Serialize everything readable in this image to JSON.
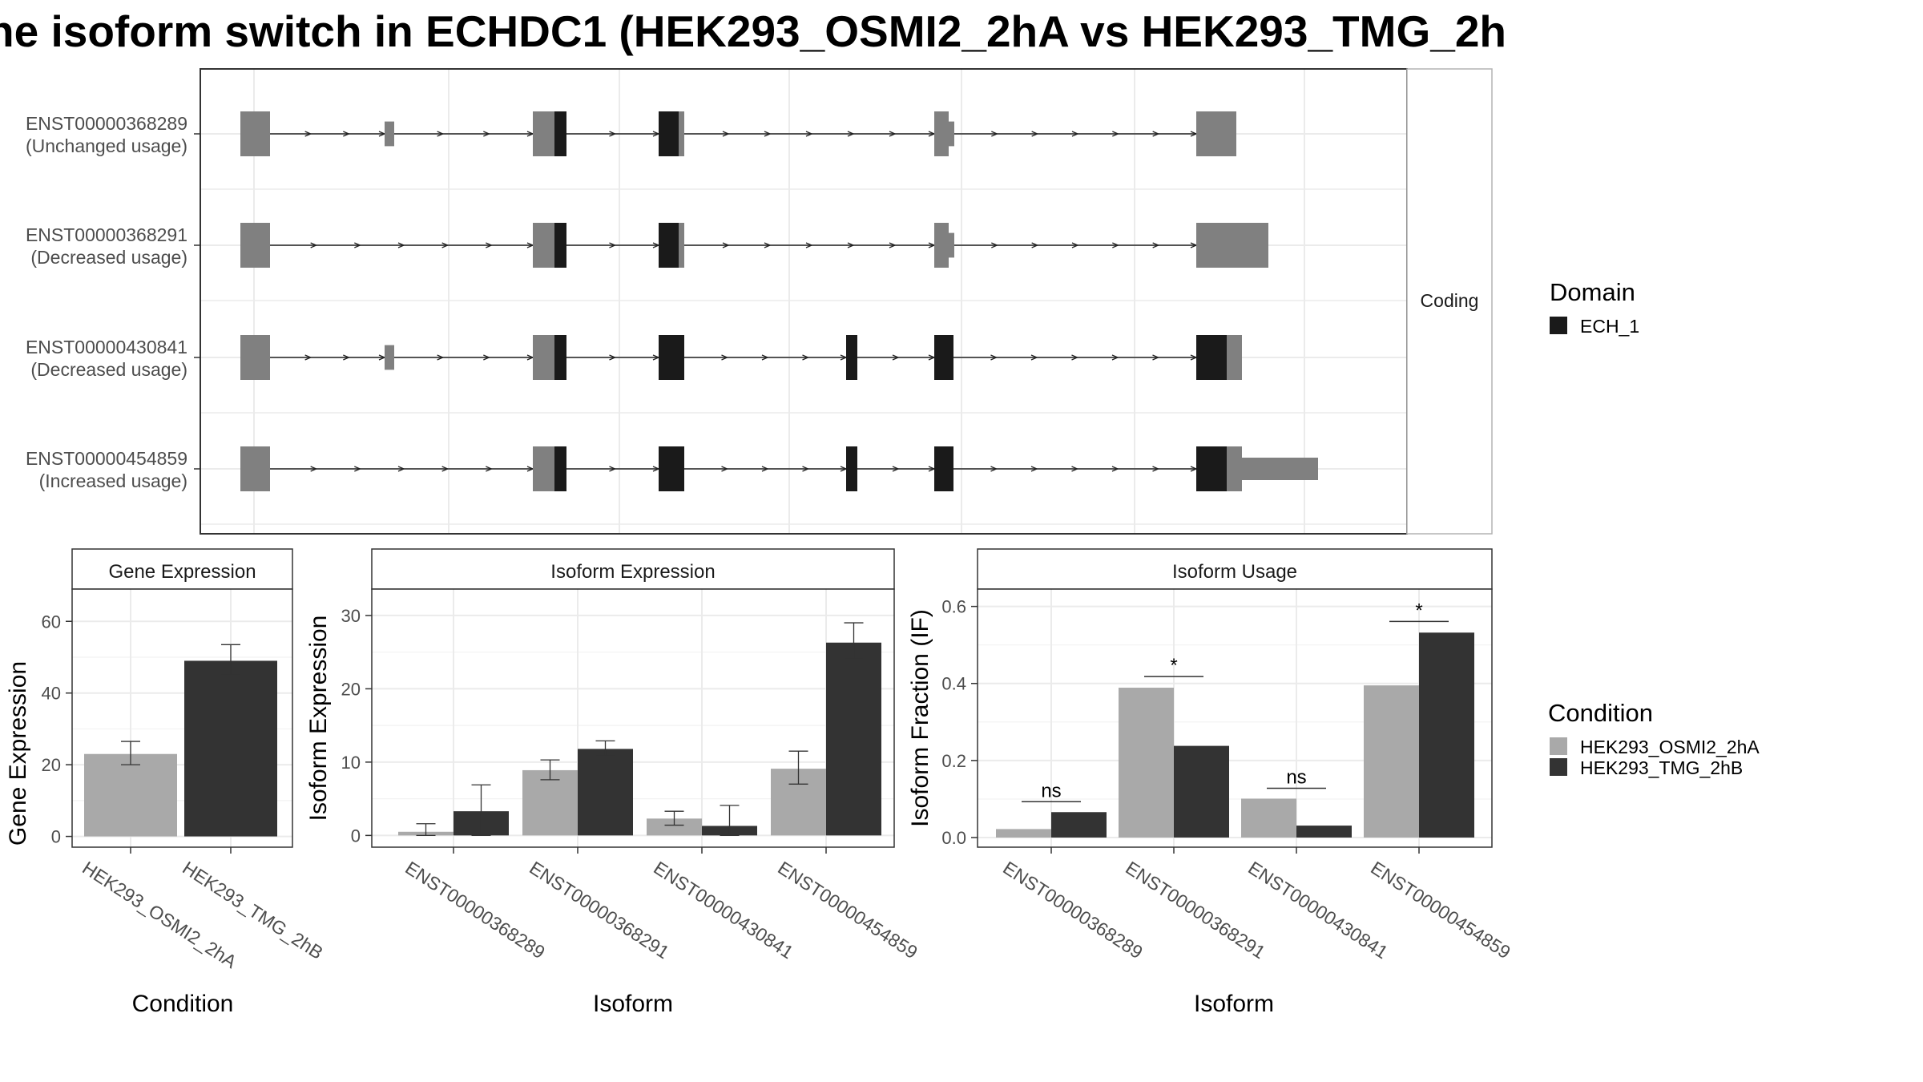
{
  "title": "ne isoform switch in ECHDC1 (HEK293_OSMI2_2hA vs HEK293_TMG_2h",
  "colors": {
    "utr": "#808080",
    "cds": "#1a1a1a",
    "condA": "#a9a9a9",
    "condB": "#333333",
    "grid": "#ebebeb",
    "strip": "#ffffff",
    "intron": "#222222"
  },
  "structure": {
    "strip_label": "Coding",
    "transcripts": [
      {
        "id": "ENST00000368289",
        "usage": "(Unchanged usage)",
        "blocks": [
          [
            0.05,
            0.087,
            "utr",
            1
          ],
          [
            0.23,
            0.242,
            "utr",
            0.55
          ],
          [
            0.415,
            0.442,
            "utr",
            1
          ],
          [
            0.442,
            0.457,
            "cds",
            1
          ],
          [
            0.572,
            0.597,
            "cds",
            1
          ],
          [
            0.597,
            0.604,
            "utr",
            1
          ],
          [
            0.916,
            0.934,
            "utr",
            1
          ],
          [
            0.934,
            0.941,
            "utr",
            0.55
          ],
          [
            1.243,
            1.293,
            "utr",
            1
          ]
        ]
      },
      {
        "id": "ENST00000368291",
        "usage": "(Decreased usage)",
        "blocks": [
          [
            0.05,
            0.087,
            "utr",
            1
          ],
          [
            0.415,
            0.442,
            "utr",
            1
          ],
          [
            0.442,
            0.457,
            "cds",
            1
          ],
          [
            0.572,
            0.597,
            "cds",
            1
          ],
          [
            0.597,
            0.604,
            "utr",
            1
          ],
          [
            0.916,
            0.934,
            "utr",
            1
          ],
          [
            0.934,
            0.941,
            "utr",
            0.55
          ],
          [
            1.243,
            1.333,
            "utr",
            1
          ]
        ]
      },
      {
        "id": "ENST00000430841",
        "usage": "(Decreased usage)",
        "blocks": [
          [
            0.05,
            0.087,
            "utr",
            1
          ],
          [
            0.23,
            0.242,
            "utr",
            0.55
          ],
          [
            0.415,
            0.442,
            "utr",
            1
          ],
          [
            0.442,
            0.457,
            "cds",
            1
          ],
          [
            0.572,
            0.604,
            "cds",
            1
          ],
          [
            0.806,
            0.82,
            "cds",
            1
          ],
          [
            0.916,
            0.94,
            "cds",
            1
          ],
          [
            1.243,
            1.281,
            "cds",
            1
          ],
          [
            1.281,
            1.3,
            "utr",
            1
          ]
        ]
      },
      {
        "id": "ENST00000454859",
        "usage": "(Increased usage)",
        "blocks": [
          [
            0.05,
            0.087,
            "utr",
            1
          ],
          [
            0.415,
            0.442,
            "utr",
            1
          ],
          [
            0.442,
            0.457,
            "cds",
            1
          ],
          [
            0.572,
            0.604,
            "cds",
            1
          ],
          [
            0.806,
            0.82,
            "cds",
            1
          ],
          [
            0.916,
            0.94,
            "cds",
            1
          ],
          [
            1.243,
            1.281,
            "cds",
            1
          ],
          [
            1.281,
            1.3,
            "utr",
            1
          ],
          [
            1.3,
            1.395,
            "utr",
            0.5
          ]
        ]
      }
    ]
  },
  "legend_domain": {
    "title": "Domain",
    "items": [
      {
        "label": "ECH_1",
        "color": "#1a1a1a"
      }
    ]
  },
  "legend_condition": {
    "title": "Condition",
    "items": [
      {
        "label": "HEK293_OSMI2_2hA",
        "color": "#a9a9a9"
      },
      {
        "label": "HEK293_TMG_2hB",
        "color": "#333333"
      }
    ]
  },
  "chart_data": [
    {
      "type": "bar",
      "title": "Gene Expression",
      "xlabel": "Condition",
      "ylabel": "Gene Expression",
      "ylim": [
        -3,
        69
      ],
      "yticks": [
        0,
        20,
        40,
        60
      ],
      "ytick_labels": [
        "0",
        "20",
        "40",
        "60"
      ],
      "categories": [
        "HEK293_OSMI2_2hA",
        "HEK293_TMG_2hB"
      ],
      "series": [
        {
          "values": [
            23,
            49
          ],
          "err_low": [
            20,
            45
          ],
          "err_high": [
            26.5,
            53.5
          ]
        }
      ]
    },
    {
      "type": "bar",
      "title": "Isoform Expression",
      "xlabel": "Isoform",
      "ylabel": "Isoform Expression",
      "ylim": [
        -1.6,
        33.6
      ],
      "yticks": [
        0,
        10,
        20,
        30
      ],
      "ytick_labels": [
        "0",
        "10",
        "20",
        "30"
      ],
      "categories": [
        "ENST00000368289",
        "ENST00000368291",
        "ENST00000430841",
        "ENST00000454859"
      ],
      "series": [
        {
          "name": "HEK293_OSMI2_2hA",
          "values": [
            0.5,
            8.9,
            2.3,
            9.1
          ],
          "err_low": [
            0,
            7.6,
            1.4,
            7
          ],
          "err_high": [
            1.6,
            10.3,
            3.3,
            11.5
          ]
        },
        {
          "name": "HEK293_TMG_2hB",
          "values": [
            3.3,
            11.8,
            1.3,
            26.3
          ],
          "err_low": [
            0,
            10.8,
            0,
            24.1
          ],
          "err_high": [
            6.9,
            12.9,
            4.1,
            29
          ]
        }
      ]
    },
    {
      "type": "bar",
      "title": "Isoform Usage",
      "xlabel": "Isoform",
      "ylabel": "Isoform Fraction (IF)",
      "ylim": [
        -0.025,
        0.645
      ],
      "yticks": [
        0,
        0.2,
        0.4,
        0.6
      ],
      "ytick_labels": [
        "0.0",
        "0.2",
        "0.4",
        "0.6"
      ],
      "categories": [
        "ENST00000368289",
        "ENST00000368291",
        "ENST00000430841",
        "ENST00000454859"
      ],
      "series": [
        {
          "name": "HEK293_OSMI2_2hA",
          "values": [
            0.022,
            0.389,
            0.101,
            0.395
          ]
        },
        {
          "name": "HEK293_TMG_2hB",
          "values": [
            0.066,
            0.238,
            0.031,
            0.532
          ]
        }
      ],
      "annotations": [
        {
          "category": 0,
          "text": "ns",
          "y": 0.093
        },
        {
          "category": 1,
          "text": "*",
          "y": 0.418
        },
        {
          "category": 2,
          "text": "ns",
          "y": 0.128
        },
        {
          "category": 3,
          "text": "*",
          "y": 0.561
        }
      ]
    }
  ]
}
